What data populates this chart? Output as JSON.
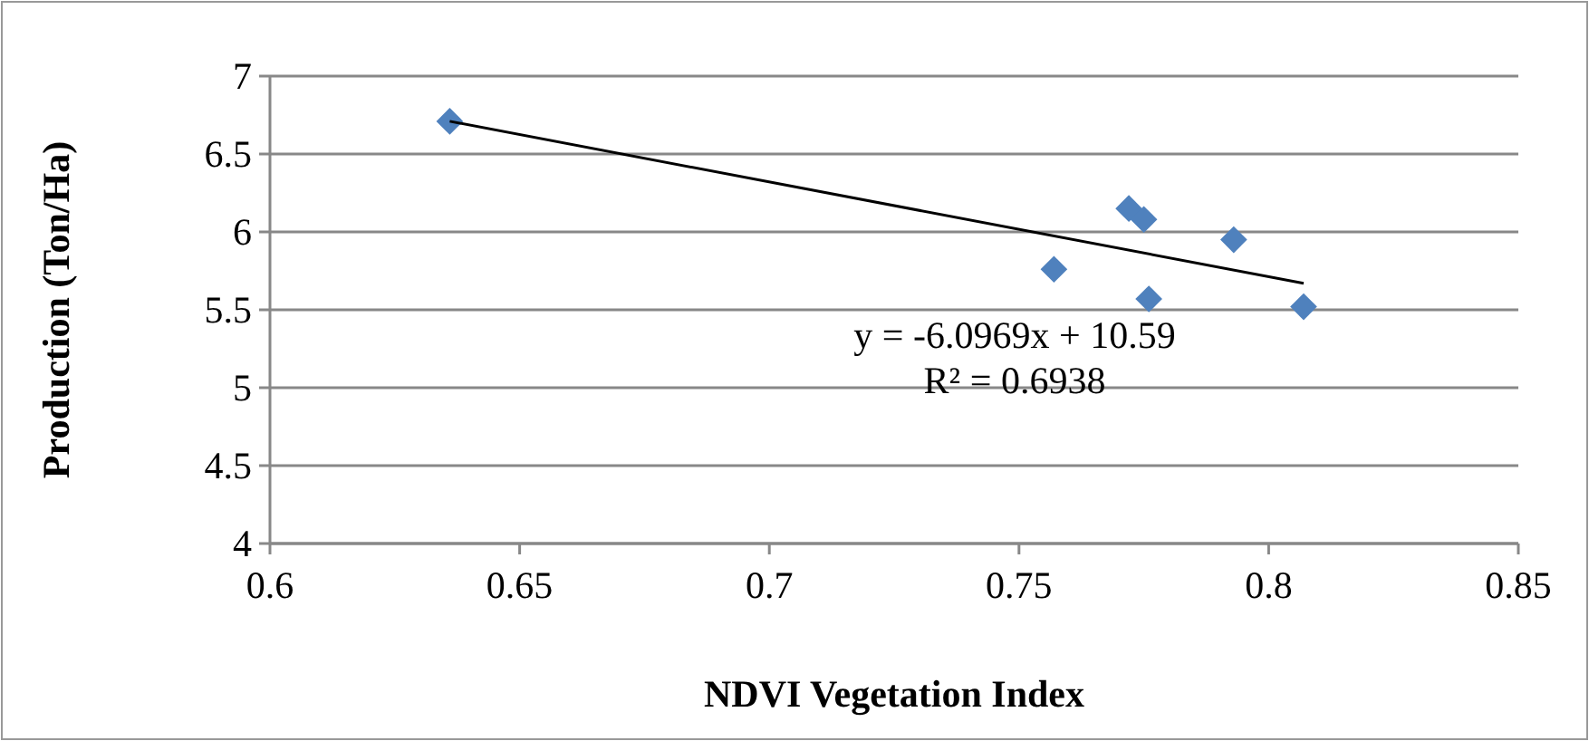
{
  "chart_data": {
    "type": "scatter",
    "xlabel": "NDVI Vegetation Index",
    "ylabel": "Production (Ton/Ha)",
    "series": [
      {
        "color": "#4f81bd",
        "marker": "diamond",
        "x": [
          0.636,
          0.757,
          0.772,
          0.775,
          0.793,
          0.776,
          0.807
        ],
        "values": [
          6.71,
          5.76,
          6.15,
          6.08,
          5.95,
          5.57,
          5.52
        ]
      },
      {
        "type": "line",
        "color": "#000000",
        "x": [
          0.636,
          0.807
        ],
        "values": [
          6.71,
          5.67
        ]
      }
    ],
    "annotations": [
      "y = -6.0969x + 10.59",
      "R² = 0.6938"
    ],
    "xlim": [
      0.6,
      0.85
    ],
    "xticks": [
      0.6,
      0.65,
      0.7,
      0.75,
      0.8,
      0.85
    ],
    "ylim": [
      4,
      7
    ],
    "yticks": [
      4,
      4.5,
      5,
      5.5,
      6,
      6.5,
      7
    ],
    "grid": "y"
  }
}
